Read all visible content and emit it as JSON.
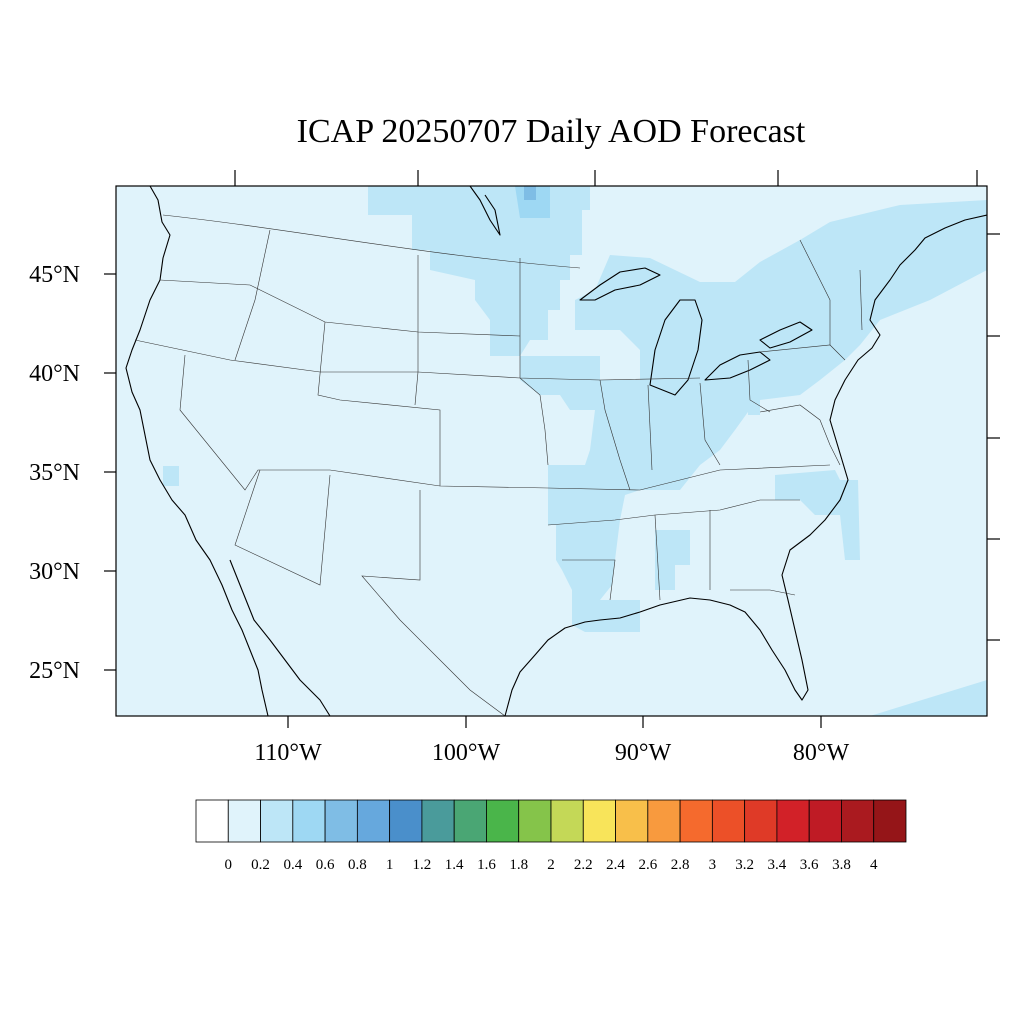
{
  "title": "ICAP 20250707 Daily AOD Forecast",
  "map": {
    "background_color": "#e0f3fb",
    "lat_labels": [
      "45°N",
      "40°N",
      "35°N",
      "30°N",
      "25°N"
    ],
    "lon_labels": [
      "110°W",
      "100°W",
      "90°W",
      "80°W"
    ]
  },
  "colorbar": {
    "levels": [
      "0",
      "0.2",
      "0.4",
      "0.6",
      "0.8",
      "1",
      "1.2",
      "1.4",
      "1.6",
      "1.8",
      "2",
      "2.2",
      "2.4",
      "2.6",
      "2.8",
      "3",
      "3.2",
      "3.4",
      "3.6",
      "3.8",
      "4"
    ],
    "colors": [
      "#ffffff",
      "#e0f3fb",
      "#bde6f7",
      "#9ed8f3",
      "#7fbde5",
      "#66a8dd",
      "#4a8fcb",
      "#4a9b9b",
      "#4aa674",
      "#4ab54a",
      "#85c44a",
      "#c4d857",
      "#f8e45a",
      "#f8bf4a",
      "#f89a3e",
      "#f56a2d",
      "#ec5028",
      "#df3a27",
      "#d22128",
      "#bf1b25",
      "#aa1a1f",
      "#951518"
    ]
  }
}
